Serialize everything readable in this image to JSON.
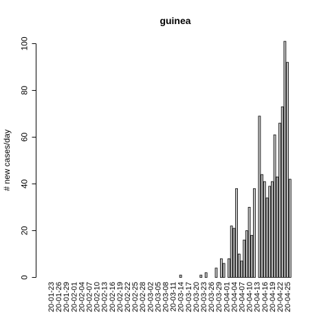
{
  "chart_data": {
    "type": "bar",
    "title": "guinea",
    "xlabel": "",
    "ylabel": "# new cases/day",
    "ylim": [
      0,
      100
    ],
    "yticks": [
      0,
      20,
      40,
      60,
      80,
      100
    ],
    "grid": false,
    "legend": "none",
    "bar_fill": "#bebebe",
    "bar_stroke": "#000000",
    "x_start": "2020-01-23",
    "x_end": "2020-04-25",
    "tick_labels": [
      "20-01-23",
      "20-01-26",
      "20-01-29",
      "20-02-01",
      "20-02-04",
      "20-02-07",
      "20-02-10",
      "20-02-13",
      "20-02-16",
      "20-02-19",
      "20-02-22",
      "20-02-25",
      "20-02-28",
      "20-03-02",
      "20-03-05",
      "20-03-08",
      "20-03-11",
      "20-03-14",
      "20-03-17",
      "20-03-20",
      "20-03-23",
      "20-03-26",
      "20-03-29",
      "20-04-01",
      "20-04-04",
      "20-04-07",
      "20-04-10",
      "20-04-13",
      "20-04-16",
      "20-04-19",
      "20-04-22",
      "20-04-25"
    ],
    "values": [
      0,
      0,
      0,
      0,
      0,
      0,
      0,
      0,
      0,
      0,
      0,
      0,
      0,
      0,
      0,
      0,
      0,
      0,
      0,
      0,
      0,
      0,
      0,
      0,
      0,
      0,
      0,
      0,
      0,
      0,
      0,
      0,
      0,
      0,
      0,
      0,
      0,
      0,
      0,
      0,
      0,
      0,
      0,
      0,
      0,
      0,
      0,
      0,
      0,
      0,
      0,
      1,
      0,
      0,
      0,
      0,
      0,
      0,
      0,
      1,
      0,
      2,
      0,
      0,
      0,
      4,
      0,
      8,
      6,
      0,
      8,
      22,
      21,
      38,
      10,
      7,
      16,
      20,
      30,
      18,
      38,
      0,
      69,
      44,
      41,
      34,
      39,
      41,
      61,
      43,
      66,
      73,
      101,
      92,
      42
    ]
  }
}
